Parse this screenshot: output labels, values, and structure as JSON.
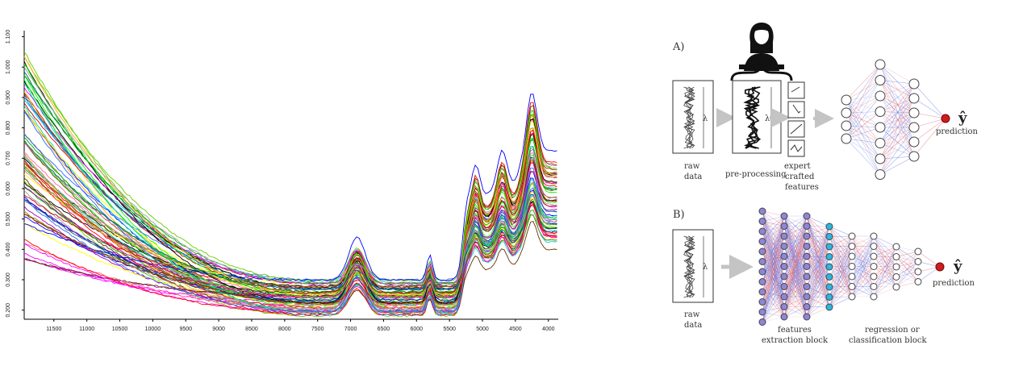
{
  "chart_data": {
    "type": "line",
    "title": "",
    "xlabel": "",
    "ylabel": "",
    "x_ticks": [
      "11500",
      "11000",
      "10500",
      "10000",
      "9500",
      "9000",
      "8500",
      "8000",
      "7500",
      "7000",
      "6500",
      "6000",
      "5500",
      "5000",
      "4500",
      "4000"
    ],
    "y_ticks": [
      "0.200",
      "0.300",
      "0.400",
      "0.500",
      "0.600",
      "0.700",
      "0.800",
      "0.900",
      "1.000",
      "1.100"
    ],
    "xlim": [
      11950,
      3850
    ],
    "ylim": [
      0.17,
      1.12
    ],
    "x_reversed": true,
    "grid": false,
    "legend": "none",
    "series_count": 70
  },
  "diagram": {
    "sectionA": "A)",
    "sectionB": "B)",
    "raw": [
      "raw",
      "data"
    ],
    "preprocessing": "pre-processing",
    "expert": [
      "expert",
      "crafted",
      "features"
    ],
    "prediction": "prediction",
    "yhat": "ŷ",
    "lambda": "λ",
    "features_block": [
      "features",
      "extraction block"
    ],
    "regression_block": [
      "regression or",
      "classification block"
    ],
    "colors": {
      "node_purple": "#8f86d6",
      "node_cyan": "#2bb8e0",
      "prediction_red": "#cc1e1e",
      "edge_red": "#e0606a",
      "edge_blue": "#5a6fe0",
      "arrow_gray": "#c4c4c4"
    },
    "icon": "person-at-laptop-icon"
  }
}
